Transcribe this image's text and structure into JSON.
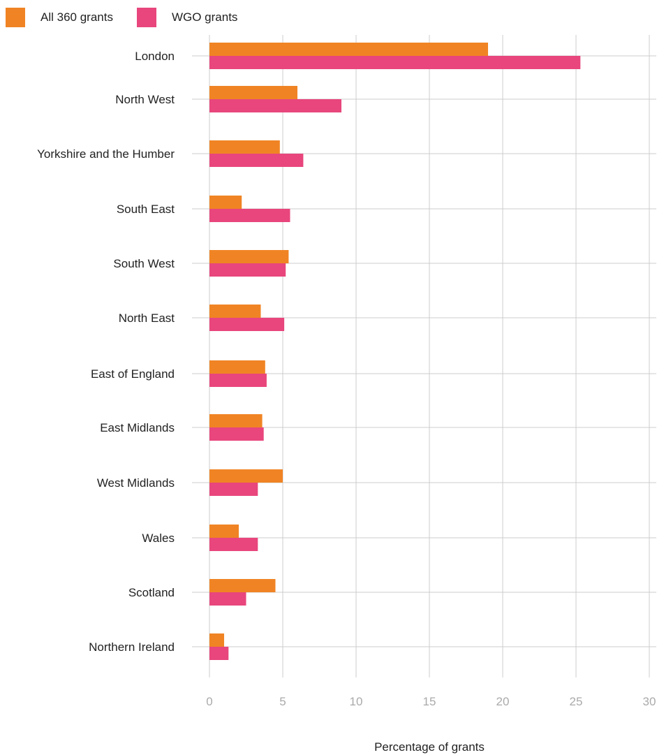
{
  "legend": {
    "items": [
      {
        "label": "All 360 grants",
        "color": "#f08424"
      },
      {
        "label": "WGO grants",
        "color": "#e8467c"
      }
    ]
  },
  "chart_data": {
    "type": "bar",
    "orientation": "horizontal",
    "title": "",
    "xlabel": "Percentage of grants",
    "ylabel": "",
    "xlim": [
      0,
      30
    ],
    "xticks": [
      0,
      5,
      10,
      15,
      20,
      25,
      30
    ],
    "grid": true,
    "legend_position": "top-left",
    "categories": [
      "London",
      "North West",
      "Yorkshire and the Humber",
      "South East",
      "South West",
      "North East",
      "East of England",
      "East Midlands",
      "West Midlands",
      "Wales",
      "Scotland",
      "Northern Ireland"
    ],
    "series": [
      {
        "name": "All 360 grants",
        "color": "#f08424",
        "values": [
          19.0,
          6.0,
          4.8,
          2.2,
          5.4,
          3.5,
          3.8,
          3.6,
          5.0,
          2.0,
          4.5,
          1.0
        ]
      },
      {
        "name": "WGO grants",
        "color": "#e8467c",
        "values": [
          25.3,
          9.0,
          6.4,
          5.5,
          5.2,
          5.1,
          3.9,
          3.7,
          3.3,
          3.3,
          2.5,
          1.3
        ]
      }
    ]
  }
}
